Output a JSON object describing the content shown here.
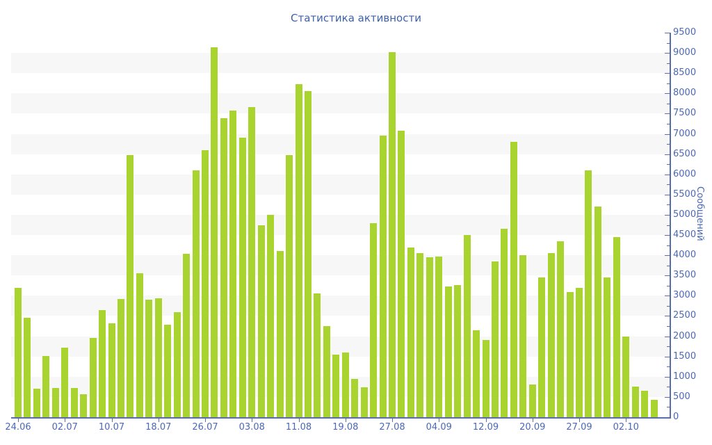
{
  "title": "Статистика активности",
  "chart_data": {
    "type": "bar",
    "title": "Статистика активности",
    "xlabel": "",
    "ylabel": "Сообщений",
    "ylim": [
      0,
      9500
    ],
    "y_tick_step": 500,
    "y_minor_tick_step": 250,
    "grid": "alternating horizontal bands every 500, no vertical grid",
    "legend_position": "none",
    "y_axis_side": "right",
    "y_tick_labels": [
      "0",
      "500",
      "1000",
      "1500",
      "2000",
      "2500",
      "3000",
      "3500",
      "4000",
      "4500",
      "5000",
      "5500",
      "6000",
      "6500",
      "7000",
      "7500",
      "8000",
      "8500",
      "9000",
      "9500"
    ],
    "x_tick_labels": [
      "24.06",
      "02.07",
      "10.07",
      "18.07",
      "26.07",
      "03.08",
      "11.08",
      "19.08",
      "27.08",
      "04.09",
      "12.09",
      "20.09",
      "27.09",
      "02.10"
    ],
    "x_tick_every": 5,
    "values": [
      3200,
      2450,
      700,
      1520,
      720,
      1720,
      730,
      560,
      1960,
      2650,
      2320,
      2915,
      6480,
      3550,
      2900,
      2940,
      2280,
      2590,
      4030,
      6090,
      6600,
      9140,
      7380,
      7570,
      6910,
      7670,
      4750,
      5000,
      4100,
      6470,
      8230,
      8060,
      3050,
      2250,
      1550,
      1590,
      940,
      745,
      4800,
      6965,
      9015,
      7075,
      4200,
      4050,
      3950,
      3970,
      3230,
      3270,
      4500,
      2150,
      1900,
      3850,
      4650,
      6800,
      4000,
      800,
      3450,
      4050,
      4350,
      3100,
      3200,
      6100,
      5200,
      3450,
      4450,
      2000,
      760,
      660,
      430
    ]
  },
  "colors": {
    "bar": "#a9d42f",
    "band": "#f7f7f7",
    "background": "#ffffff",
    "axis_line": "#5b6da8",
    "tick": "#5b6da8",
    "label": "#4a68b5",
    "title": "#3c61ae"
  }
}
